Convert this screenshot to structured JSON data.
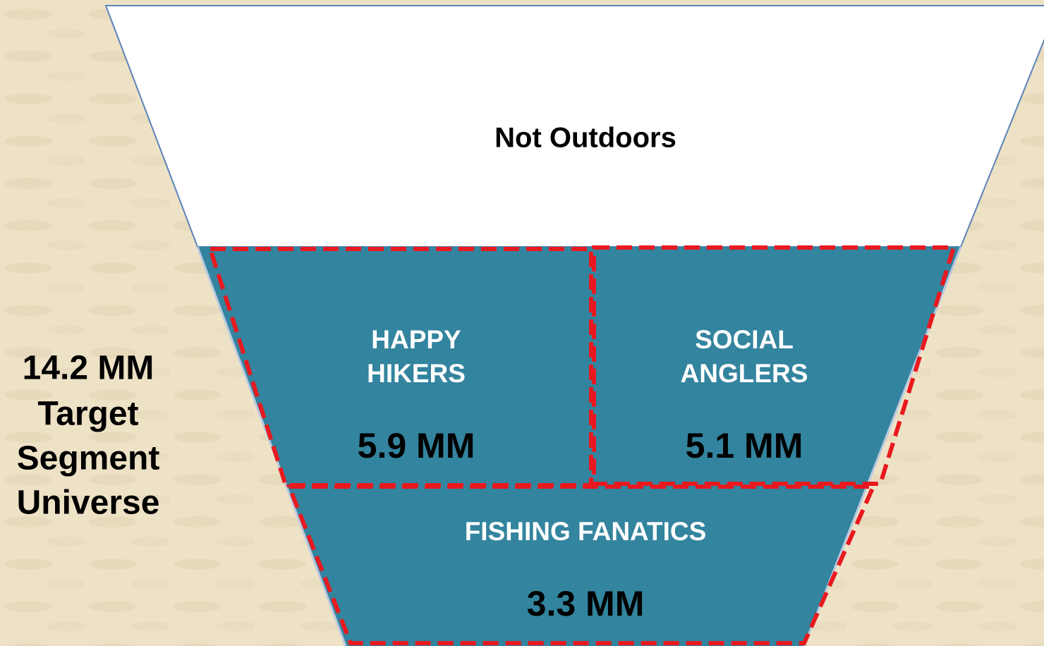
{
  "funnel": {
    "top": {
      "label": "Not Outdoors"
    },
    "segments": [
      {
        "name": [
          "HAPPY",
          "HIKERS"
        ],
        "size": "5.9 MM"
      },
      {
        "name": [
          "SOCIAL",
          "ANGLERS"
        ],
        "size": "5.1 MM"
      },
      {
        "name": [
          "FISHING FANATICS"
        ],
        "size": "3.3 MM"
      }
    ]
  },
  "total": {
    "lines": [
      "14.2 MM",
      "Target",
      "Segment",
      "Universe"
    ]
  }
}
